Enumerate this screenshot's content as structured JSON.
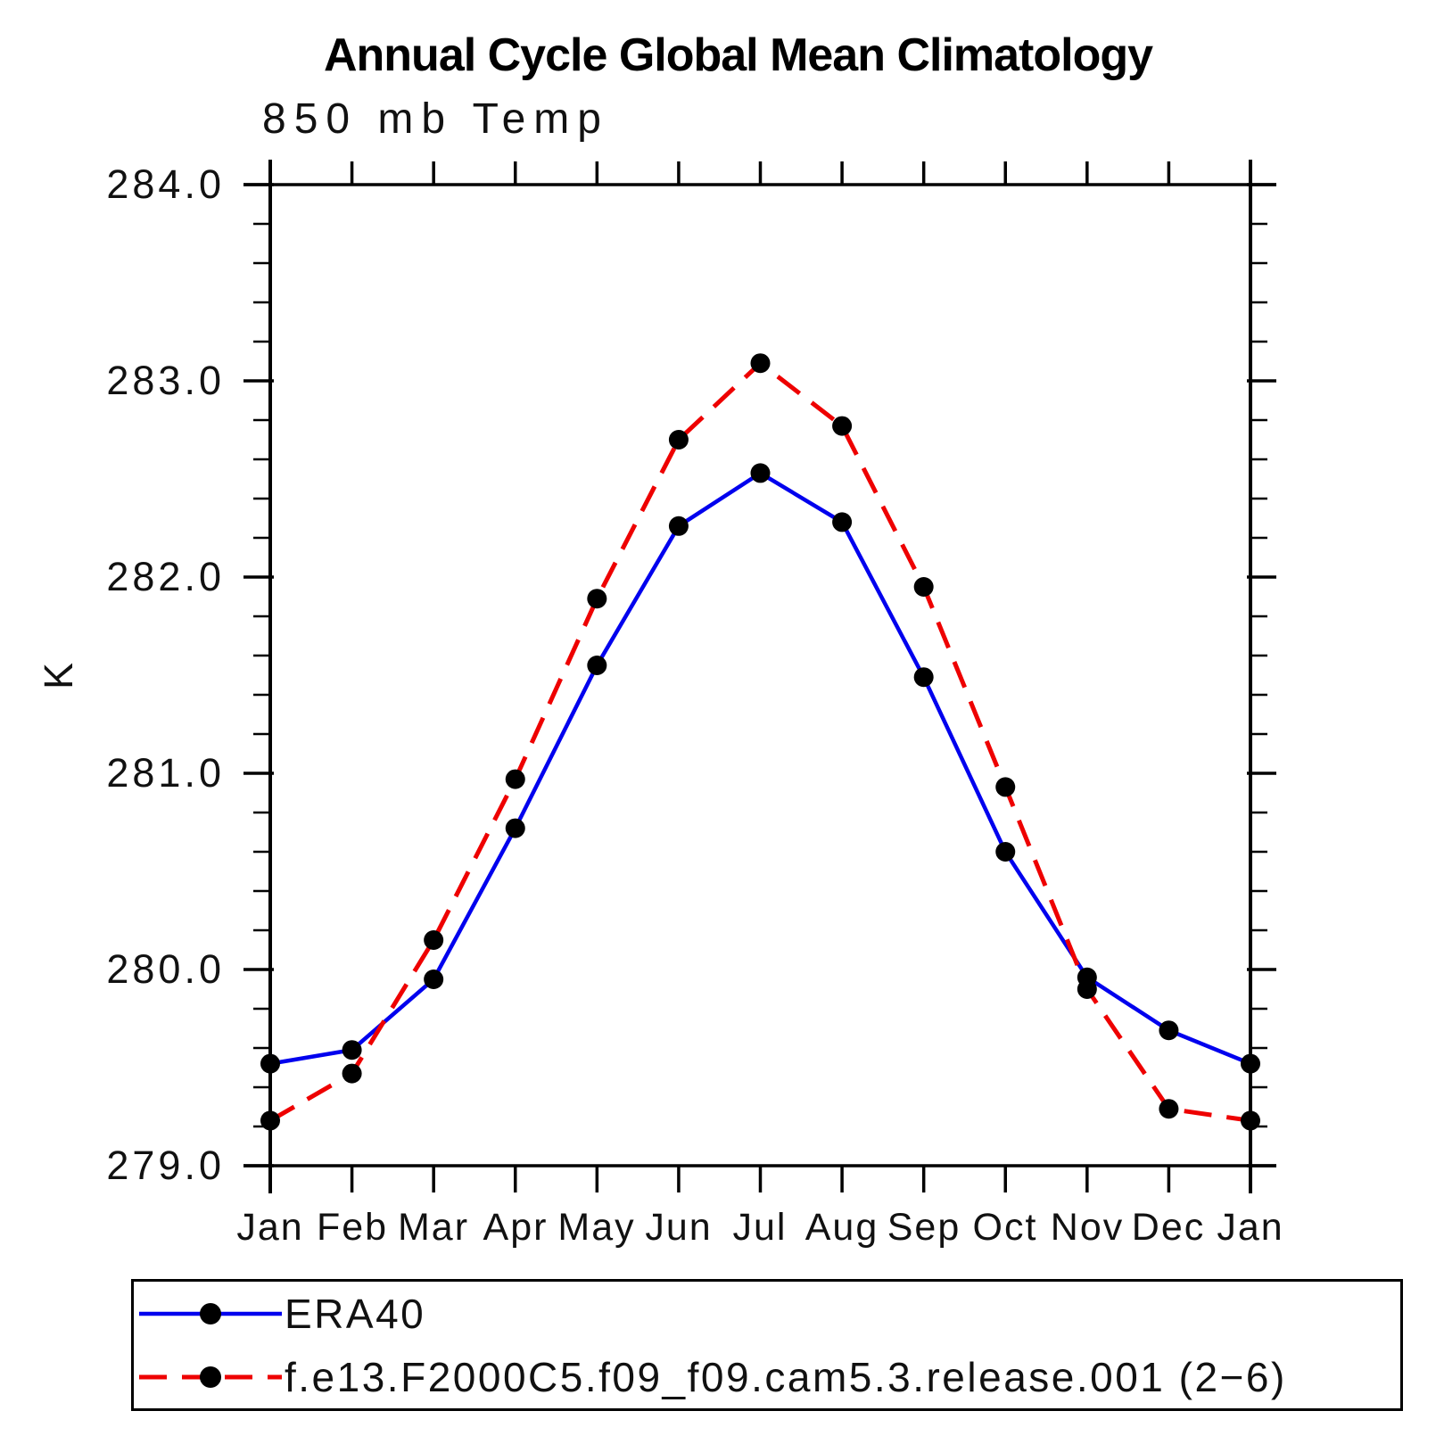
{
  "page": {
    "background": "#ffffff"
  },
  "header": {
    "title": "Annual Cycle Global Mean Climatology",
    "subtitle": "850 mb Temp"
  },
  "chart_data": {
    "type": "line",
    "title": "Annual Cycle Global Mean Climatology",
    "subtitle": "850 mb Temp",
    "xlabel": "",
    "ylabel": "K",
    "grid": false,
    "legend_position": "bottom-left-box",
    "categories": [
      "Jan",
      "Feb",
      "Mar",
      "Apr",
      "May",
      "Jun",
      "Jul",
      "Aug",
      "Sep",
      "Oct",
      "Nov",
      "Dec",
      "Jan"
    ],
    "y_axis": {
      "min": 279.0,
      "max": 284.0,
      "major_step": 1.0,
      "minor_step": 0.2,
      "tick_labels": [
        "284.0",
        "283.0",
        "282.0",
        "281.0",
        "280.0",
        "279.0"
      ]
    },
    "series": [
      {
        "name": "ERA40",
        "color": "#0000ee",
        "line_style": "solid",
        "line_width": 4.5,
        "marker": "filled-circle",
        "marker_color": "#000000",
        "values": [
          279.52,
          279.59,
          279.95,
          280.72,
          281.55,
          282.26,
          282.53,
          282.28,
          281.49,
          280.6,
          279.96,
          279.69,
          279.52
        ]
      },
      {
        "name": "f.e13.F2000C5.f09_f09.cam5.3.release.001 (2−6)",
        "color": "#ee0000",
        "line_style": "dashed",
        "line_width": 5,
        "marker": "filled-circle",
        "marker_color": "#000000",
        "values": [
          279.23,
          279.47,
          280.15,
          280.97,
          281.89,
          282.7,
          283.09,
          282.77,
          281.95,
          280.93,
          279.9,
          279.29,
          279.23
        ]
      }
    ]
  }
}
